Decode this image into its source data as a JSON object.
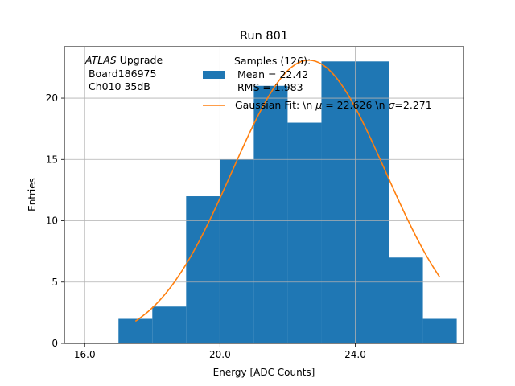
{
  "chart_data": {
    "type": "bar",
    "title": "Run 801",
    "xlabel": "Energy [ADC Counts]",
    "ylabel": "Entries",
    "xlim": [
      15.4,
      27.2
    ],
    "ylim": [
      0,
      24.2
    ],
    "x_ticks": [
      16.0,
      20.0,
      24.0
    ],
    "x_tick_labels": [
      "16.0",
      "20.0",
      "24.0"
    ],
    "y_ticks": [
      0,
      5,
      10,
      15,
      20
    ],
    "y_tick_labels": [
      "0",
      "5",
      "10",
      "15",
      "20"
    ],
    "grid": true,
    "bins": [
      {
        "x0": 17,
        "x1": 18,
        "count": 2
      },
      {
        "x0": 18,
        "x1": 19,
        "count": 3
      },
      {
        "x0": 19,
        "x1": 20,
        "count": 12
      },
      {
        "x0": 20,
        "x1": 21,
        "count": 15
      },
      {
        "x0": 21,
        "x1": 22,
        "count": 21
      },
      {
        "x0": 22,
        "x1": 23,
        "count": 18
      },
      {
        "x0": 23,
        "x1": 24,
        "count": 23
      },
      {
        "x0": 24,
        "x1": 25,
        "count": 23
      },
      {
        "x0": 25,
        "x1": 26,
        "count": 7
      },
      {
        "x0": 26,
        "x1": 27,
        "count": 2
      }
    ],
    "fit": {
      "mu": 22.626,
      "sigma": 2.271,
      "amplitude": 23.1,
      "x_range": [
        17.5,
        26.5
      ]
    },
    "colors": {
      "bars": "#1f77b4",
      "fit": "#ff7f0e",
      "grid": "#b0b0b0"
    },
    "annotation": {
      "atlas": "ATLAS",
      "line1_rest": " Upgrade",
      "line2": " Board186975",
      "line3": " Ch010 35dB"
    },
    "legend": {
      "position": "top-right",
      "samples_label": [
        "Samples (126):",
        " Mean = 22.42",
        " RMS = 1.983"
      ],
      "fit_label_parts": [
        "Gaussian Fit: \\n ",
        "μ",
        " = 22.626 \\n ",
        "σ",
        "=2.271"
      ]
    }
  }
}
